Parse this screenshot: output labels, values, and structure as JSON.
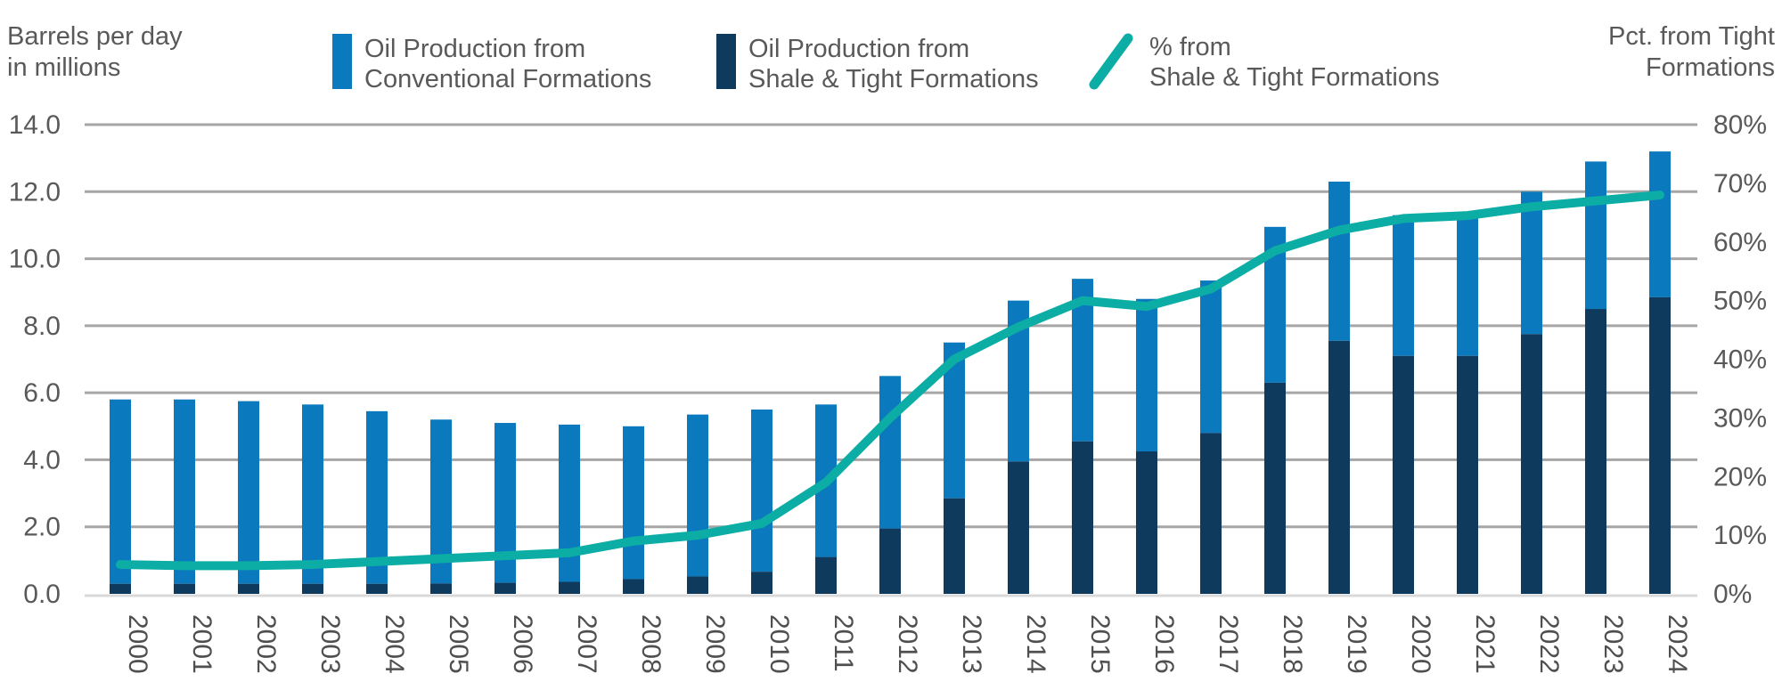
{
  "titles": {
    "left": {
      "line1": "Barrels per day",
      "line2": "in millions"
    },
    "right": {
      "line1": "Pct. from Tight",
      "line2": "Formations"
    }
  },
  "legend": {
    "items": [
      {
        "line1": "Oil Production from",
        "line2": "Conventional Formations",
        "swatch_color": "#0b79bd",
        "icon": "bar-swatch"
      },
      {
        "line1": "Oil Production from",
        "line2": "Shale & Tight Formations",
        "swatch_color": "#0e3a5e",
        "icon": "bar-swatch"
      },
      {
        "line1": "% from",
        "line2": "Shale & Tight Formations",
        "swatch_color": "#0cada4",
        "icon": "line-slash"
      }
    ]
  },
  "colors": {
    "conventional": "#0b79bd",
    "shale": "#0e3a5e",
    "pct_line": "#0cada4",
    "gridline": "#a6a6a6",
    "baseline": "#d9d9d9",
    "tick_text": "#595959",
    "year_text": "#4f4f4f"
  },
  "chart_data": {
    "type": "bar",
    "subtype": "stacked-bars-with-line",
    "categories": [
      "2000",
      "2001",
      "2002",
      "2003",
      "2004",
      "2005",
      "2006",
      "2007",
      "2008",
      "2009",
      "2010",
      "2011",
      "2012",
      "2013",
      "2014",
      "2015",
      "2016",
      "2017",
      "2018",
      "2019",
      "2020",
      "2021",
      "2022",
      "2023",
      "2024"
    ],
    "series": [
      {
        "name": "Oil Production from Shale & Tight Formations",
        "type": "bar",
        "stack_order": "bottom",
        "axis": "left",
        "color": "#0e3a5e",
        "values": [
          0.3,
          0.3,
          0.3,
          0.3,
          0.3,
          0.31,
          0.33,
          0.36,
          0.44,
          0.52,
          0.66,
          1.1,
          1.95,
          2.85,
          3.95,
          4.55,
          4.25,
          4.8,
          6.3,
          7.55,
          7.1,
          7.1,
          7.75,
          8.5,
          8.85
        ]
      },
      {
        "name": "Oil Production from Conventional Formations",
        "type": "bar",
        "stack_order": "top",
        "axis": "left",
        "color": "#0b79bd",
        "values": [
          5.5,
          5.5,
          5.45,
          5.35,
          5.15,
          4.89,
          4.77,
          4.69,
          4.56,
          4.83,
          4.84,
          4.55,
          4.55,
          4.65,
          4.8,
          4.85,
          4.55,
          4.55,
          4.65,
          4.75,
          4.2,
          4.1,
          4.25,
          4.4,
          4.35
        ]
      },
      {
        "name": "% from Shale & Tight Formations",
        "type": "line",
        "axis": "right",
        "color": "#0cada4",
        "values": [
          5,
          4.8,
          4.8,
          5,
          5.5,
          6,
          6.5,
          7,
          9,
          10,
          12,
          19,
          30,
          40,
          45.5,
          50,
          49,
          52,
          58.5,
          62,
          64,
          64.5,
          66,
          67,
          68
        ]
      }
    ],
    "title": "",
    "xlabel": "",
    "ylabel_left": "Barrels per day in millions",
    "ylabel_right": "Pct. from Tight Formations",
    "y_left": {
      "min": 0,
      "max": 14,
      "step": 2,
      "tick_labels": [
        "0.0",
        "2.0",
        "4.0",
        "6.0",
        "8.0",
        "10.0",
        "12.0",
        "14.0"
      ]
    },
    "y_right": {
      "min": 0,
      "max": 80,
      "step": 10,
      "tick_labels": [
        "0%",
        "10%",
        "20%",
        "30%",
        "40%",
        "50%",
        "60%",
        "70%",
        "80%"
      ]
    },
    "grid": "horizontal-only",
    "legend_position": "top"
  }
}
